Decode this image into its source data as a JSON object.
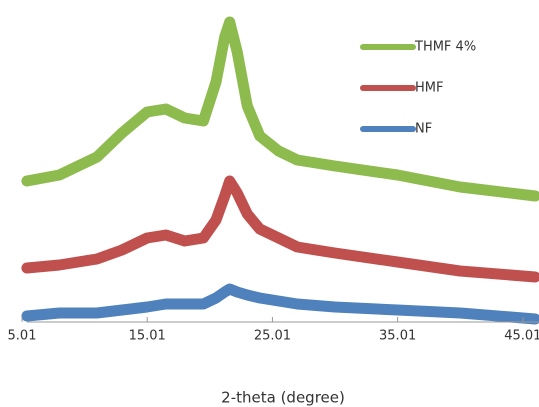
{
  "chart_data": {
    "type": "line",
    "x_label": "2-theta (degree)",
    "x": [
      5.4,
      8,
      11,
      13,
      15,
      16.5,
      18,
      19.5,
      20.5,
      21.2,
      21.6,
      22.2,
      23,
      24,
      25.5,
      27,
      30,
      35,
      40,
      46
    ],
    "series": [
      {
        "name": "THMF 4%",
        "color": "#8dbb4e",
        "values": [
          47,
          49,
          55,
          63,
          70,
          71,
          68,
          67,
          80,
          95,
          100,
          90,
          72,
          62,
          57,
          54,
          52,
          49,
          45,
          42
        ]
      },
      {
        "name": "HMF",
        "color": "#c0504d",
        "values": [
          18,
          19,
          21,
          24,
          28,
          29,
          27,
          28,
          34,
          42,
          47,
          43,
          36,
          31,
          28,
          25,
          23,
          20,
          17,
          15
        ]
      },
      {
        "name": "NF",
        "color": "#4f81bd",
        "values": [
          2,
          3,
          3,
          4,
          5,
          6,
          6,
          6,
          8,
          10,
          11,
          10,
          9,
          8,
          7,
          6,
          5,
          4,
          3,
          1
        ]
      }
    ],
    "xlim": [
      5.01,
      46.3
    ],
    "xticks": [
      5.01,
      15.01,
      25.01,
      35.01,
      45.01
    ],
    "ylim": [
      0,
      100
    ],
    "legend": "top-right"
  }
}
